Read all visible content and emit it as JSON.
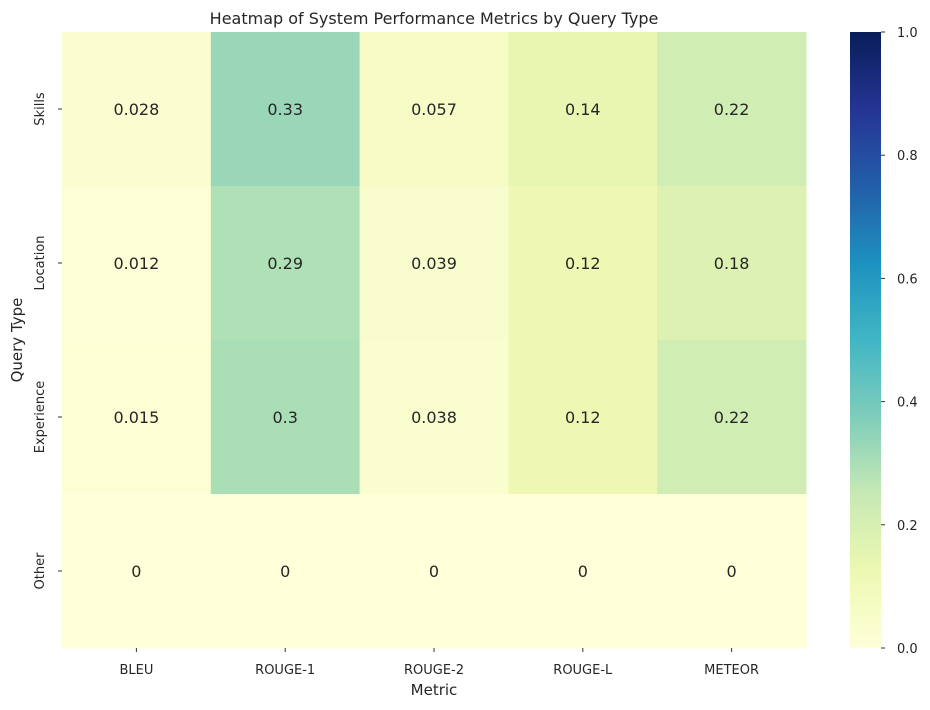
{
  "chart_data": {
    "type": "heatmap",
    "title": "Heatmap of System Performance Metrics by Query Type",
    "xlabel": "Metric",
    "ylabel": "Query Type",
    "x_categories": [
      "BLEU",
      "ROUGE-1",
      "ROUGE-2",
      "ROUGE-L",
      "METEOR"
    ],
    "y_categories": [
      "Skills",
      "Location",
      "Experience",
      "Other"
    ],
    "values": [
      [
        0.028,
        0.33,
        0.057,
        0.14,
        0.22
      ],
      [
        0.012,
        0.29,
        0.039,
        0.12,
        0.18
      ],
      [
        0.015,
        0.3,
        0.038,
        0.12,
        0.22
      ],
      [
        0,
        0,
        0,
        0,
        0
      ]
    ],
    "value_labels": [
      [
        "0.028",
        "0.33",
        "0.057",
        "0.14",
        "0.22"
      ],
      [
        "0.012",
        "0.29",
        "0.039",
        "0.12",
        "0.18"
      ],
      [
        "0.015",
        "0.3",
        "0.038",
        "0.12",
        "0.22"
      ],
      [
        "0",
        "0",
        "0",
        "0",
        "0"
      ]
    ],
    "colormap": "YlGnBu",
    "vmin": 0,
    "vmax": 1,
    "colorbar_ticks": [
      "0.0",
      "0.2",
      "0.4",
      "0.6",
      "0.8",
      "1.0"
    ],
    "colorbar_tick_values": [
      0,
      0.2,
      0.4,
      0.6,
      0.8,
      1.0
    ],
    "colors": {
      "text": "#262626",
      "background": "#ffffff",
      "tick": "#333333"
    }
  }
}
